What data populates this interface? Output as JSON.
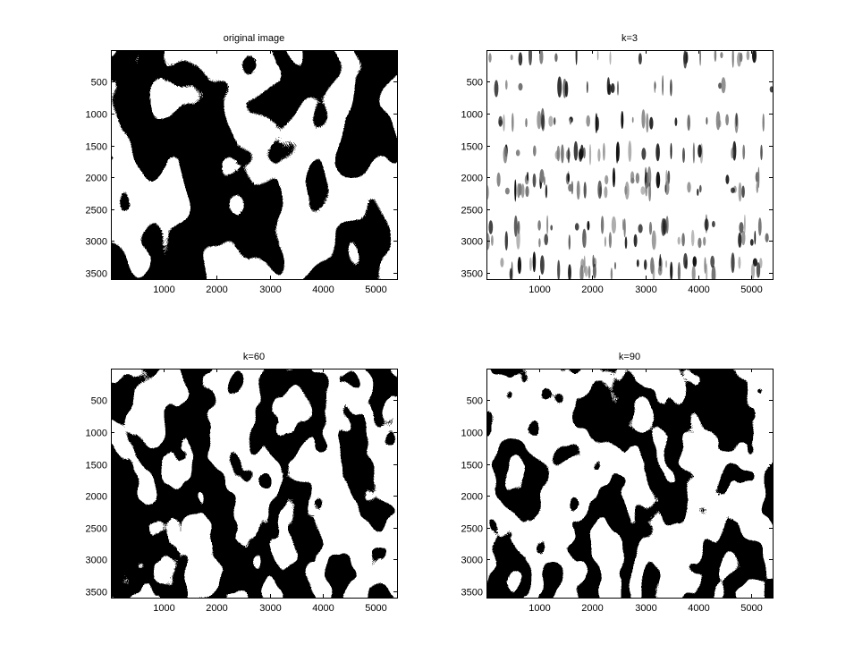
{
  "chart_data": [
    {
      "type": "heatmap",
      "title": "original image",
      "colormap": "gray",
      "pattern": "dense",
      "xlim": [
        1,
        5400
      ],
      "ylim": [
        1,
        3600
      ],
      "y_reversed": true,
      "xticks": [
        1000,
        2000,
        3000,
        4000,
        5000
      ],
      "yticks": [
        500,
        1000,
        1500,
        2000,
        2500,
        3000,
        3500
      ],
      "xlabel": "",
      "ylabel": ""
    },
    {
      "type": "heatmap",
      "title": "k=3",
      "colormap": "gray",
      "pattern": "sparse",
      "xlim": [
        1,
        5400
      ],
      "ylim": [
        1,
        3600
      ],
      "y_reversed": true,
      "xticks": [
        1000,
        2000,
        3000,
        4000,
        5000
      ],
      "yticks": [
        500,
        1000,
        1500,
        2000,
        2500,
        3000,
        3500
      ],
      "xlabel": "",
      "ylabel": ""
    },
    {
      "type": "heatmap",
      "title": "k=60",
      "colormap": "gray",
      "pattern": "dense",
      "xlim": [
        1,
        5400
      ],
      "ylim": [
        1,
        3600
      ],
      "y_reversed": true,
      "xticks": [
        1000,
        2000,
        3000,
        4000,
        5000
      ],
      "yticks": [
        500,
        1000,
        1500,
        2000,
        2500,
        3000,
        3500
      ],
      "xlabel": "",
      "ylabel": ""
    },
    {
      "type": "heatmap",
      "title": "k=90",
      "colormap": "gray",
      "pattern": "dense",
      "xlim": [
        1,
        5400
      ],
      "ylim": [
        1,
        3600
      ],
      "y_reversed": true,
      "xticks": [
        1000,
        2000,
        3000,
        4000,
        5000
      ],
      "yticks": [
        500,
        1000,
        1500,
        2000,
        2500,
        3000,
        3500
      ],
      "xlabel": "",
      "ylabel": ""
    }
  ]
}
